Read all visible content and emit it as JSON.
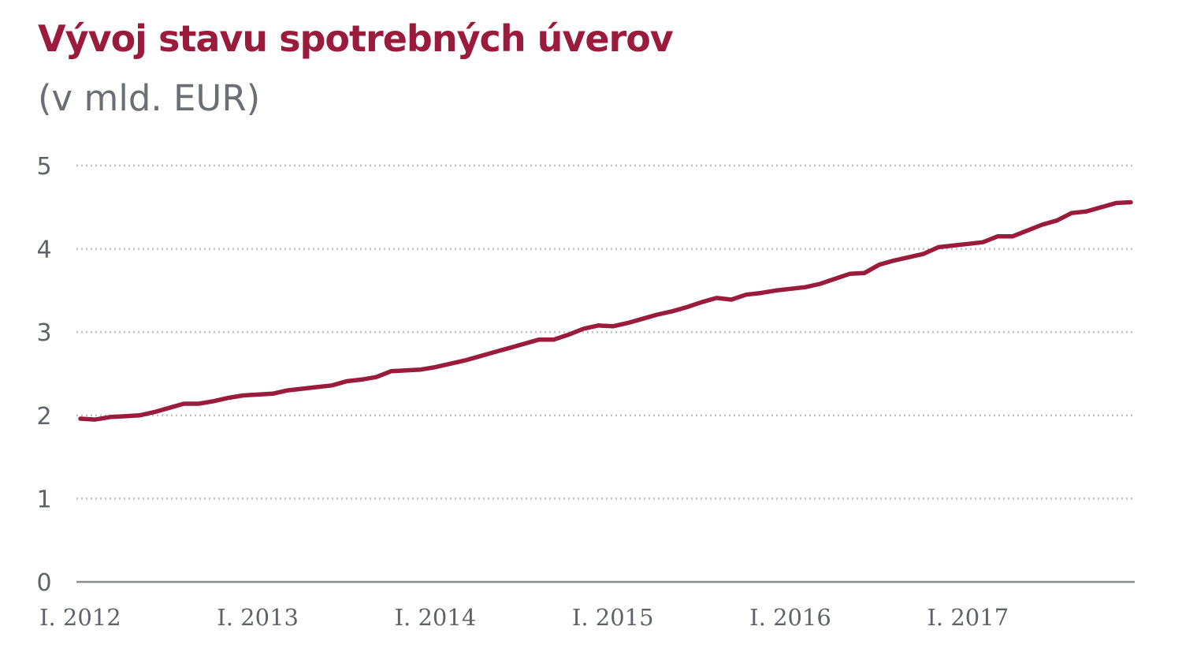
{
  "colors": {
    "title": "#9b1b3c",
    "subtitle": "#6b6f73",
    "series": "#9b1b3c",
    "axis_text": "#5f6368",
    "grid": "#bfc2c5",
    "axis_line": "#8a8d90"
  },
  "chart_data": {
    "type": "line",
    "title": "Vývoj stavu spotrebných úverov",
    "subtitle": "(v mld. EUR)",
    "xlabel": "",
    "ylabel": "",
    "ylim": [
      0,
      5
    ],
    "yticks": [
      0,
      1,
      2,
      3,
      4,
      5
    ],
    "grid": true,
    "x_ticks": [
      {
        "label": "I. 2012",
        "at": 1
      },
      {
        "label": "I. 2013",
        "at": 13
      },
      {
        "label": "I. 2014",
        "at": 25
      },
      {
        "label": "I. 2015",
        "at": 37
      },
      {
        "label": "I. 2016",
        "at": 49
      },
      {
        "label": "I. 2017",
        "at": 61
      }
    ],
    "x_range": [
      1,
      72
    ],
    "series": [
      {
        "values": [
          1.96,
          1.95,
          1.98,
          1.99,
          2.0,
          2.04,
          2.09,
          2.14,
          2.14,
          2.17,
          2.21,
          2.24,
          2.25,
          2.26,
          2.3,
          2.32,
          2.34,
          2.36,
          2.41,
          2.43,
          2.46,
          2.53,
          2.54,
          2.55,
          2.58,
          2.62,
          2.66,
          2.71,
          2.76,
          2.81,
          2.86,
          2.91,
          2.91,
          2.97,
          3.04,
          3.08,
          3.07,
          3.11,
          3.16,
          3.21,
          3.25,
          3.3,
          3.36,
          3.41,
          3.39,
          3.45,
          3.47,
          3.5,
          3.52,
          3.54,
          3.58,
          3.64,
          3.7,
          3.71,
          3.81,
          3.86,
          3.9,
          3.94,
          4.02,
          4.04,
          4.06,
          4.08,
          4.15,
          4.15,
          4.22,
          4.29,
          4.34,
          4.43,
          4.45,
          4.5,
          4.55,
          4.56
        ]
      }
    ]
  }
}
